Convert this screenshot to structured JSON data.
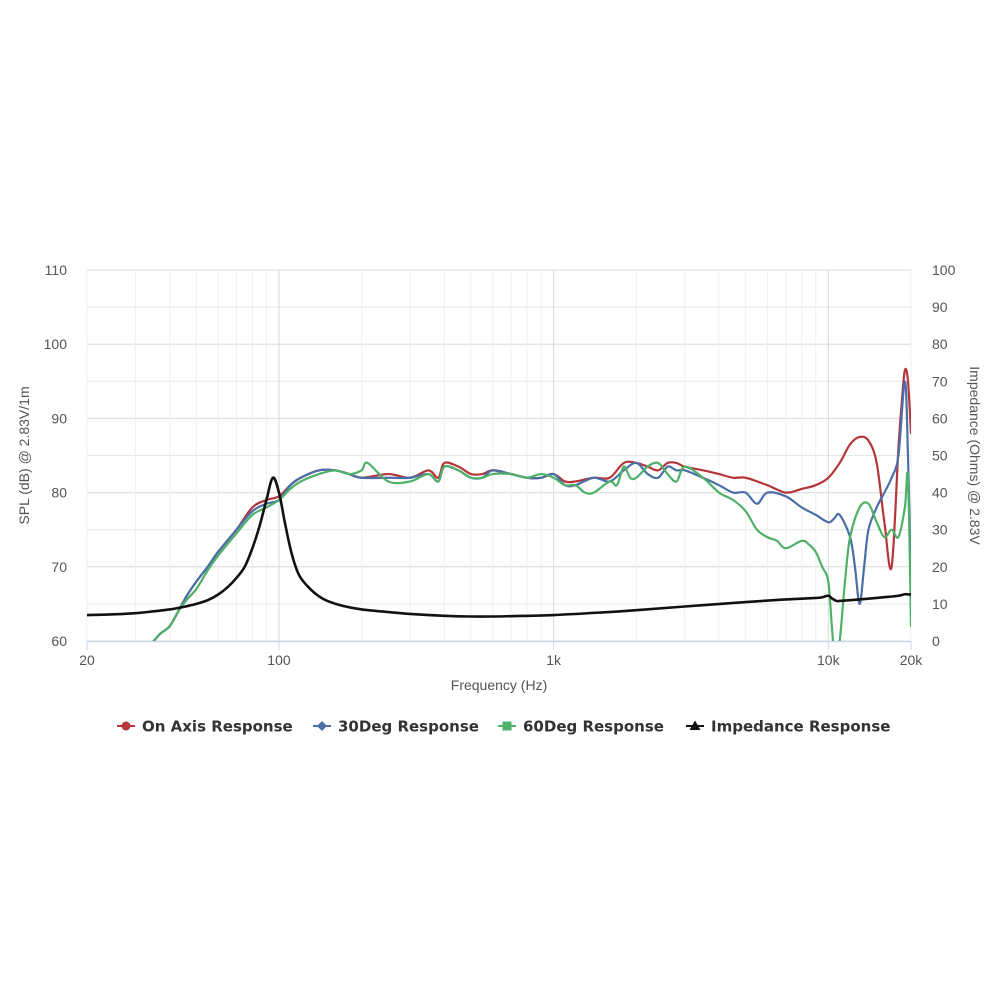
{
  "chart_data": {
    "type": "line",
    "xlabel": "Frequency (Hz)",
    "ylabel_left": "SPL (dB) @ 2.83V/1m",
    "ylabel_right": "Impedance (Ohms) @ 2.83V",
    "x_scale": "log",
    "xlim": [
      20,
      20000
    ],
    "ylim_left": [
      60,
      110
    ],
    "ylim_right": [
      0,
      100
    ],
    "x_ticks": [
      {
        "value": 20,
        "label": "20"
      },
      {
        "value": 100,
        "label": "100"
      },
      {
        "value": 1000,
        "label": "1k"
      },
      {
        "value": 10000,
        "label": "10k"
      },
      {
        "value": 20000,
        "label": "20k"
      }
    ],
    "y_left_ticks": [
      60,
      70,
      80,
      90,
      100,
      110
    ],
    "y_right_ticks": [
      0,
      10,
      20,
      30,
      40,
      50,
      60,
      70,
      80,
      90,
      100
    ],
    "grid": true,
    "legend_position": "bottom",
    "series": [
      {
        "name": "On Axis Response",
        "color": "#b5363a",
        "marker": "circle",
        "axis": "left",
        "x": [
          35,
          37,
          40,
          43,
          46,
          50,
          55,
          60,
          70,
          80,
          90,
          100,
          110,
          120,
          140,
          160,
          180,
          200,
          250,
          300,
          350,
          380,
          400,
          450,
          500,
          550,
          600,
          700,
          800,
          900,
          1000,
          1100,
          1200,
          1400,
          1600,
          1800,
          2000,
          2200,
          2400,
          2600,
          2800,
          3000,
          3500,
          4000,
          4500,
          5000,
          6000,
          7000,
          8000,
          9000,
          10000,
          11000,
          12000,
          13000,
          14000,
          15000,
          16000,
          17000,
          18000,
          18500,
          19000,
          19500,
          20000
        ],
        "y": [
          60,
          61,
          62,
          64,
          66,
          68,
          70,
          72,
          75,
          78,
          79,
          79.5,
          81,
          82,
          83,
          83,
          82.5,
          82,
          82.5,
          82,
          83,
          82,
          84,
          83.5,
          82.5,
          82.5,
          83,
          82.5,
          82,
          82,
          82.5,
          81.5,
          81.5,
          82,
          82,
          84,
          84,
          83.5,
          83,
          84,
          84,
          83.5,
          83,
          82.5,
          82,
          82,
          81,
          80,
          80.5,
          81,
          82,
          84,
          86.5,
          87.5,
          87,
          84,
          76,
          70,
          86,
          92,
          96.5,
          95,
          88
        ]
      },
      {
        "name": "30Deg Response",
        "color": "#4a6fa8",
        "marker": "diamond",
        "axis": "left",
        "x": [
          35,
          37,
          40,
          43,
          46,
          50,
          55,
          60,
          70,
          80,
          90,
          100,
          110,
          120,
          140,
          160,
          180,
          200,
          250,
          300,
          350,
          380,
          400,
          450,
          500,
          550,
          600,
          700,
          800,
          900,
          1000,
          1100,
          1200,
          1400,
          1600,
          1800,
          2000,
          2200,
          2400,
          2600,
          2800,
          3000,
          3500,
          4000,
          4500,
          5000,
          5500,
          6000,
          7000,
          8000,
          9000,
          10000,
          10500,
          11000,
          12000,
          12500,
          13000,
          13500,
          14000,
          15000,
          16000,
          17000,
          18000,
          19000,
          19500,
          20000
        ],
        "y": [
          60,
          61,
          62,
          64,
          66,
          68,
          70,
          72,
          75,
          77.5,
          78.5,
          79,
          81,
          82,
          83,
          83,
          82.5,
          82,
          82,
          82,
          82.5,
          81.5,
          83.5,
          83,
          82,
          82,
          83,
          82.5,
          82,
          82,
          82.5,
          81,
          81,
          82,
          81.5,
          83,
          84,
          82.5,
          82,
          83.5,
          83,
          83,
          82,
          81,
          80,
          80,
          78.5,
          80,
          79.5,
          78,
          77,
          76,
          76.5,
          77,
          74,
          70,
          65,
          70,
          75,
          78,
          80,
          82,
          85,
          95,
          85,
          68
        ]
      },
      {
        "name": "60Deg Response",
        "color": "#4fb068",
        "marker": "square",
        "axis": "left",
        "x": [
          35,
          37,
          40,
          43,
          46,
          50,
          55,
          60,
          70,
          80,
          90,
          100,
          110,
          120,
          140,
          160,
          180,
          200,
          210,
          250,
          300,
          350,
          380,
          400,
          450,
          500,
          550,
          600,
          700,
          800,
          900,
          1000,
          1100,
          1200,
          1300,
          1400,
          1600,
          1700,
          1800,
          1900,
          2000,
          2200,
          2400,
          2600,
          2800,
          3000,
          3500,
          4000,
          4500,
          5000,
          5500,
          6000,
          6500,
          7000,
          8000,
          8500,
          9000,
          9500,
          10000,
          10300,
          10600,
          11000,
          11500,
          12000,
          13000,
          14000,
          15000,
          16000,
          17000,
          18000,
          19000,
          19500,
          20000
        ],
        "y": [
          60,
          61,
          62,
          64,
          65.5,
          67,
          69.5,
          71.5,
          74.5,
          77,
          78,
          79,
          80.5,
          81.5,
          82.5,
          83,
          82.5,
          83,
          84,
          81.5,
          81.5,
          82.5,
          81.5,
          83.5,
          83,
          82,
          82,
          82.5,
          82.5,
          82,
          82.5,
          82,
          81,
          81,
          80,
          80,
          81.5,
          81,
          83.5,
          82,
          82,
          83.5,
          84,
          82.5,
          81.5,
          83.5,
          82,
          80,
          79,
          77.5,
          75,
          74,
          73.5,
          72.5,
          73.5,
          73,
          72,
          70,
          68,
          62,
          57,
          60,
          68,
          74,
          78,
          78.5,
          76,
          74,
          75,
          74,
          78,
          82,
          62
        ]
      },
      {
        "name": "Impedance Response",
        "color": "#111111",
        "marker": "triangle",
        "axis": "right",
        "x": [
          20,
          25,
          30,
          35,
          40,
          45,
          50,
          55,
          60,
          65,
          70,
          75,
          80,
          85,
          90,
          95,
          100,
          105,
          110,
          115,
          120,
          130,
          140,
          150,
          170,
          200,
          250,
          300,
          400,
          500,
          600,
          700,
          1000,
          1500,
          2000,
          3000,
          5000,
          7000,
          9000,
          9500,
          10000,
          10300,
          10700,
          11000,
          12000,
          14000,
          16000,
          18000,
          19000,
          20000
        ],
        "y": [
          7,
          7.2,
          7.5,
          8,
          8.5,
          9.2,
          10,
          11,
          12.5,
          14.5,
          17,
          20,
          25,
          31,
          38,
          44,
          40,
          32,
          25,
          20,
          17,
          14,
          12,
          10.8,
          9.5,
          8.5,
          7.8,
          7.3,
          6.8,
          6.6,
          6.6,
          6.7,
          7,
          7.7,
          8.3,
          9.3,
          10.5,
          11.2,
          11.6,
          11.8,
          12.2,
          11.5,
          10.8,
          10.8,
          11,
          11.4,
          11.8,
          12.2,
          12.6,
          12.5
        ]
      }
    ]
  }
}
